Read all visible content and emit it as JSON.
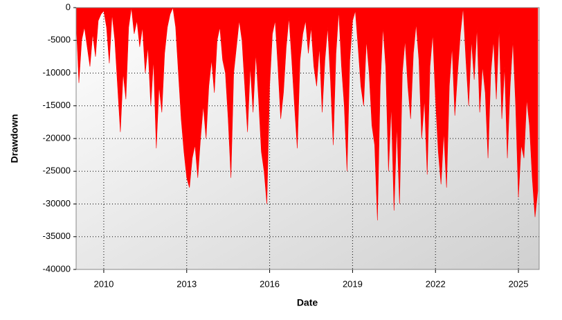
{
  "chart_data": {
    "type": "area",
    "x_label": "Date",
    "y_label": "Drawdown",
    "xlim": [
      2009.0,
      2025.75
    ],
    "xticks": [
      2010,
      2013,
      2016,
      2019,
      2022,
      2025
    ],
    "ylim": [
      -40000,
      0
    ],
    "yticks": [
      0,
      -5000,
      -10000,
      -15000,
      -20000,
      -25000,
      -30000,
      -35000,
      -40000
    ],
    "grid": true,
    "series": [
      {
        "name": "Drawdown",
        "color": "#ff0000",
        "x": [
          2009.0,
          2009.1,
          2009.2,
          2009.3,
          2009.4,
          2009.5,
          2009.6,
          2009.7,
          2009.8,
          2009.9,
          2010.0,
          2010.1,
          2010.2,
          2010.3,
          2010.4,
          2010.5,
          2010.6,
          2010.7,
          2010.8,
          2010.9,
          2011.0,
          2011.1,
          2011.2,
          2011.3,
          2011.4,
          2011.5,
          2011.6,
          2011.7,
          2011.8,
          2011.9,
          2012.0,
          2012.1,
          2012.2,
          2012.3,
          2012.4,
          2012.5,
          2012.6,
          2012.7,
          2012.8,
          2012.9,
          2013.0,
          2013.1,
          2013.2,
          2013.3,
          2013.4,
          2013.5,
          2013.6,
          2013.7,
          2013.8,
          2013.9,
          2014.0,
          2014.1,
          2014.2,
          2014.3,
          2014.4,
          2014.5,
          2014.6,
          2014.7,
          2014.8,
          2014.9,
          2015.0,
          2015.1,
          2015.2,
          2015.3,
          2015.4,
          2015.5,
          2015.6,
          2015.7,
          2015.8,
          2015.9,
          2016.0,
          2016.1,
          2016.2,
          2016.3,
          2016.4,
          2016.5,
          2016.6,
          2016.7,
          2016.8,
          2016.9,
          2017.0,
          2017.1,
          2017.2,
          2017.3,
          2017.4,
          2017.5,
          2017.6,
          2017.7,
          2017.8,
          2017.9,
          2018.0,
          2018.1,
          2018.2,
          2018.3,
          2018.4,
          2018.5,
          2018.6,
          2018.7,
          2018.8,
          2018.9,
          2019.0,
          2019.1,
          2019.2,
          2019.3,
          2019.4,
          2019.5,
          2019.6,
          2019.7,
          2019.8,
          2019.9,
          2020.0,
          2020.1,
          2020.2,
          2020.3,
          2020.4,
          2020.5,
          2020.6,
          2020.7,
          2020.8,
          2020.9,
          2021.0,
          2021.1,
          2021.2,
          2021.3,
          2021.4,
          2021.5,
          2021.6,
          2021.7,
          2021.8,
          2021.9,
          2022.0,
          2022.1,
          2022.2,
          2022.3,
          2022.4,
          2022.5,
          2022.6,
          2022.7,
          2022.8,
          2022.9,
          2023.0,
          2023.1,
          2023.2,
          2023.3,
          2023.4,
          2023.5,
          2023.6,
          2023.7,
          2023.8,
          2023.9,
          2024.0,
          2024.1,
          2024.2,
          2024.3,
          2024.4,
          2024.5,
          2024.6,
          2024.7,
          2024.8,
          2024.9,
          2025.0,
          2025.1,
          2025.2,
          2025.3,
          2025.4,
          2025.5,
          2025.6,
          2025.7
        ],
        "values": [
          -2000,
          -11500,
          -5000,
          -3000,
          -6000,
          -9000,
          -4000,
          -7500,
          -2000,
          -1000,
          -500,
          -3000,
          -8500,
          -1000,
          -5000,
          -12000,
          -19000,
          -10000,
          -14000,
          -3000,
          0,
          -4000,
          -2000,
          -6000,
          -3000,
          -10000,
          -6000,
          -15000,
          -8000,
          -21500,
          -12000,
          -16000,
          -7000,
          -3000,
          -1000,
          0,
          -3000,
          -10000,
          -17000,
          -22000,
          -26000,
          -27500,
          -23000,
          -21000,
          -26000,
          -20000,
          -15000,
          -20000,
          -12000,
          -8000,
          -13000,
          -5000,
          -3000,
          -8000,
          -10000,
          -17000,
          -26000,
          -10000,
          -6000,
          -2000,
          -5000,
          -12000,
          -19000,
          -9000,
          -16000,
          -7000,
          -14000,
          -22000,
          -25000,
          -30000,
          -12000,
          -4000,
          -2000,
          -9000,
          -17000,
          -13000,
          -6000,
          -1500,
          -8000,
          -15000,
          -21500,
          -8000,
          -4000,
          -2000,
          -7000,
          -3000,
          -9000,
          -12000,
          -6000,
          -16000,
          -8000,
          -3000,
          -11000,
          -21000,
          -7000,
          -500,
          -9000,
          -15000,
          -25000,
          -8000,
          -2000,
          -500,
          -6000,
          -12000,
          -15000,
          -5000,
          -10000,
          -18000,
          -21000,
          -32500,
          -12000,
          -3000,
          -9000,
          -25000,
          -15000,
          -31000,
          -18000,
          -30000,
          -10000,
          -5000,
          -12000,
          -17000,
          -7000,
          -2500,
          -8000,
          -20000,
          -14000,
          -25500,
          -9000,
          -4000,
          -14000,
          -22000,
          -27000,
          -19000,
          -27500,
          -12000,
          -6000,
          -16500,
          -10000,
          -4000,
          0,
          -8000,
          -15000,
          -5000,
          -11000,
          -3000,
          -16000,
          -9000,
          -13000,
          -23000,
          -10000,
          -5000,
          -14000,
          -3000,
          -17000,
          -9000,
          -23000,
          -12000,
          -5000,
          -15000,
          -29000,
          -21000,
          -23000,
          -14000,
          -18000,
          -26000,
          -32000,
          -28000
        ]
      }
    ]
  }
}
